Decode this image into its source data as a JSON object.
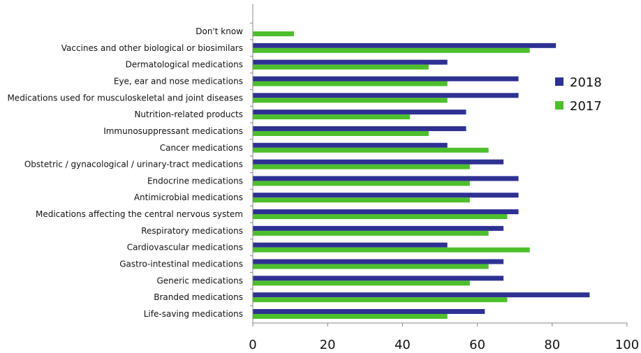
{
  "chart_data": {
    "type": "bar",
    "orientation": "horizontal",
    "categories": [
      "Don't know",
      "Vaccines and other biological or biosimilars",
      "Dermatological medications",
      "Eye, ear and nose medications",
      "Medications used for musculoskeletal and joint diseases",
      "Nutrition-related products",
      "Immunosuppressant medications",
      "Cancer medications",
      "Obstetric / gynacological / urinary-tract medications",
      "Endocrine medications",
      "Antimicrobial medications",
      "Medications affecting the central nervous system",
      "Respiratory medications",
      "Cardiovascular medications",
      "Gastro-intestinal medications",
      "Generic medications",
      "Branded medications",
      "Life-saving medications"
    ],
    "series": [
      {
        "name": "2018",
        "color": "#2e3192",
        "values": [
          0,
          81,
          52,
          71,
          71,
          57,
          57,
          52,
          67,
          71,
          71,
          71,
          67,
          52,
          67,
          67,
          90,
          62
        ]
      },
      {
        "name": "2017",
        "color": "#4dbf2c",
        "values": [
          11,
          74,
          47,
          52,
          52,
          42,
          47,
          63,
          58,
          58,
          58,
          68,
          63,
          74,
          63,
          58,
          68,
          52
        ]
      }
    ],
    "xlim": [
      0,
      100
    ],
    "xticks": [
      "0",
      "20",
      "40",
      "60",
      "80",
      "100"
    ],
    "title": "",
    "xlabel": "",
    "ylabel": "",
    "legend_position": "right",
    "grid": false
  }
}
